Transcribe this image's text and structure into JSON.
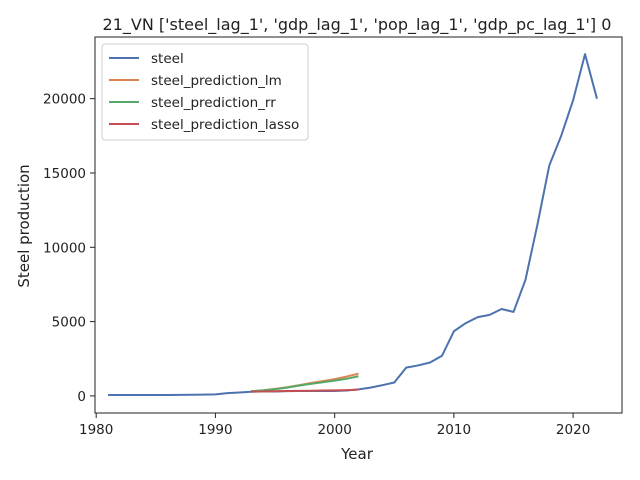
{
  "chart_data": {
    "type": "line",
    "title": "21_VN ['steel_lag_1', 'gdp_lag_1', 'pop_lag_1', 'gdp_pc_lag_1'] 0",
    "xlabel": "Year",
    "ylabel": "Steel production",
    "xlim": [
      1979.9,
      2024.1
    ],
    "ylim": [
      -1150,
      24150
    ],
    "xticks": [
      1980,
      1990,
      2000,
      2010,
      2020
    ],
    "yticks": [
      0,
      5000,
      10000,
      15000,
      20000
    ],
    "grid": false,
    "legend_position": "top-left",
    "series": [
      {
        "name": "steel",
        "color": "#4c72b0",
        "x": [
          1981,
          1982,
          1983,
          1984,
          1985,
          1986,
          1987,
          1988,
          1989,
          1990,
          1991,
          1992,
          1993,
          1994,
          1995,
          1996,
          1997,
          1998,
          1999,
          2000,
          2001,
          2002,
          2003,
          2004,
          2005,
          2006,
          2007,
          2008,
          2009,
          2010,
          2011,
          2012,
          2013,
          2014,
          2015,
          2016,
          2017,
          2018,
          2019,
          2020,
          2021,
          2022
        ],
        "y": [
          60,
          60,
          60,
          60,
          60,
          65,
          70,
          75,
          85,
          100,
          190,
          230,
          280,
          310,
          300,
          320,
          330,
          330,
          330,
          330,
          360,
          440,
          560,
          720,
          900,
          1900,
          2050,
          2250,
          2700,
          4350,
          4900,
          5300,
          5450,
          5850,
          5650,
          7800,
          11500,
          15500,
          17500,
          19900,
          23000,
          20000
        ]
      },
      {
        "name": "steel_prediction_lm",
        "color": "#dd8452",
        "x": [
          1993,
          1994,
          1995,
          1996,
          1997,
          1998,
          1999,
          2000,
          2001,
          2002
        ],
        "y": [
          310,
          380,
          470,
          580,
          720,
          870,
          1000,
          1130,
          1300,
          1500
        ]
      },
      {
        "name": "steel_prediction_rr",
        "color": "#55a868",
        "x": [
          1993,
          1994,
          1995,
          1996,
          1997,
          1998,
          1999,
          2000,
          2001,
          2002
        ],
        "y": [
          310,
          370,
          450,
          560,
          690,
          810,
          920,
          1030,
          1150,
          1320
        ]
      },
      {
        "name": "steel_prediction_lasso",
        "color": "#c44e52",
        "x": [
          1993,
          1994,
          1995,
          1996,
          1997,
          1998,
          1999,
          2000,
          2001,
          2002
        ],
        "y": [
          290,
          300,
          310,
          330,
          340,
          350,
          360,
          370,
          390,
          420
        ]
      }
    ]
  }
}
